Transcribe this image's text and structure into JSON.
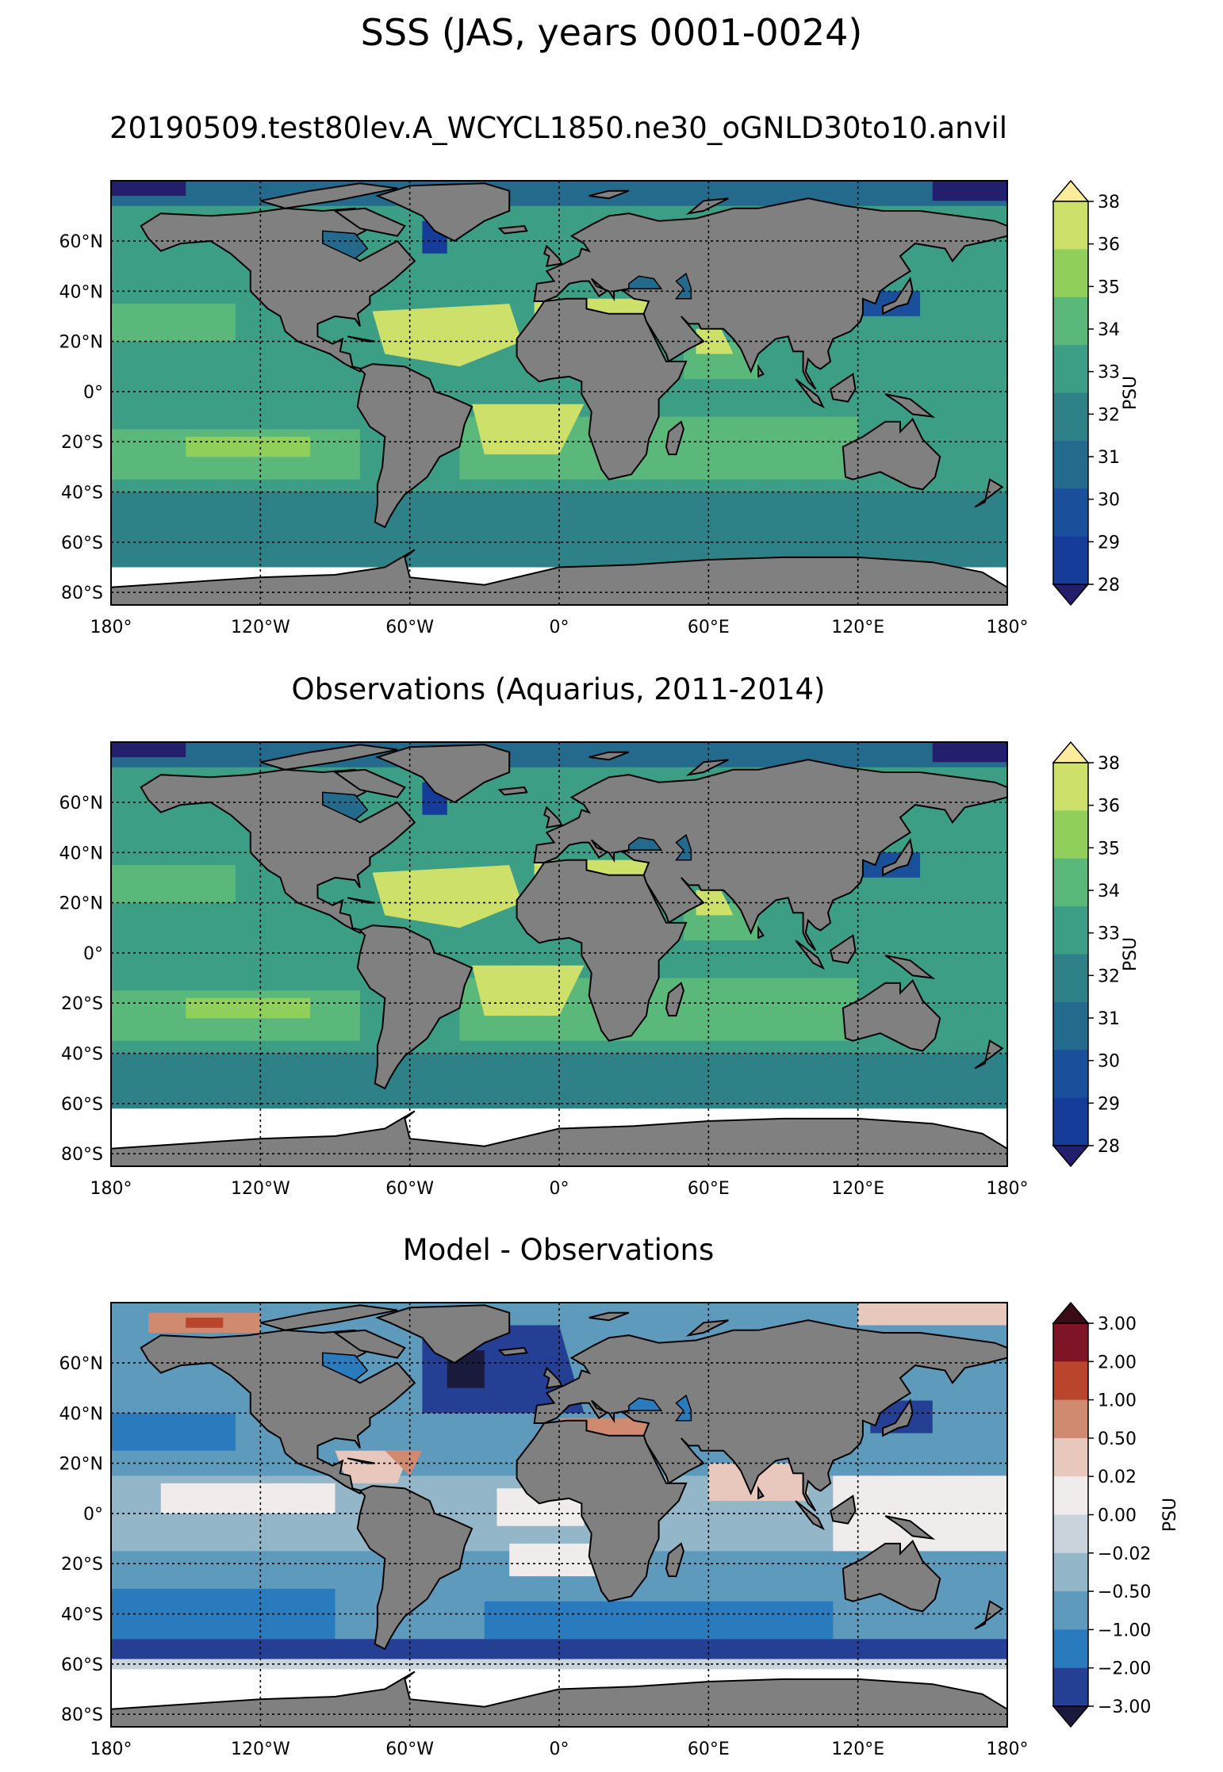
{
  "figure": {
    "suptitle": "SSS (JAS, years 0001-0024)",
    "colors": {
      "land": "#808080",
      "nodata": "#ffffff",
      "grid": "#000000"
    }
  },
  "axes": {
    "lat_labels": [
      "60°N",
      "40°N",
      "20°N",
      "0°",
      "20°S",
      "40°S",
      "60°S",
      "80°S"
    ],
    "lon_labels": [
      "180°",
      "120°W",
      "60°W",
      "0°",
      "60°E",
      "120°E",
      "180°"
    ]
  },
  "panels": [
    {
      "title": "20190509.test80lev.A_WCYCL1850.ne30_oGNLD30to10.anvil",
      "colorbar": {
        "label": "PSU",
        "ticks": [
          "38",
          "36",
          "35",
          "34",
          "33",
          "32",
          "31",
          "30",
          "29",
          "28"
        ],
        "colors": [
          "#fcec9b",
          "#cde06a",
          "#8fcf5a",
          "#5ab87a",
          "#3d9e86",
          "#2f8188",
          "#236a8d",
          "#1a4f9c",
          "#163c9a",
          "#241f6c"
        ],
        "extend": "both"
      }
    },
    {
      "title": "Observations (Aquarius, 2011-2014)",
      "colorbar": {
        "label": "PSU",
        "ticks": [
          "38",
          "36",
          "35",
          "34",
          "33",
          "32",
          "31",
          "30",
          "29",
          "28"
        ],
        "colors": [
          "#fcec9b",
          "#cde06a",
          "#8fcf5a",
          "#5ab87a",
          "#3d9e86",
          "#2f8188",
          "#236a8d",
          "#1a4f9c",
          "#163c9a",
          "#241f6c"
        ],
        "extend": "both"
      }
    },
    {
      "title": "Model - Observations",
      "colorbar": {
        "label": "PSU",
        "ticks": [
          "3.00",
          "2.00",
          "1.00",
          "0.50",
          "0.02",
          "0.00",
          "−0.02",
          "−0.50",
          "−1.00",
          "−2.00",
          "−3.00"
        ],
        "colors": [
          "#3a0d16",
          "#7f1426",
          "#b9452c",
          "#d08a70",
          "#e8c7bd",
          "#f1ecec",
          "#c9d3dc",
          "#93b6c8",
          "#5d9abc",
          "#2a7bbd",
          "#253f95",
          "#1a1a3c"
        ],
        "extend": "both"
      }
    }
  ]
}
